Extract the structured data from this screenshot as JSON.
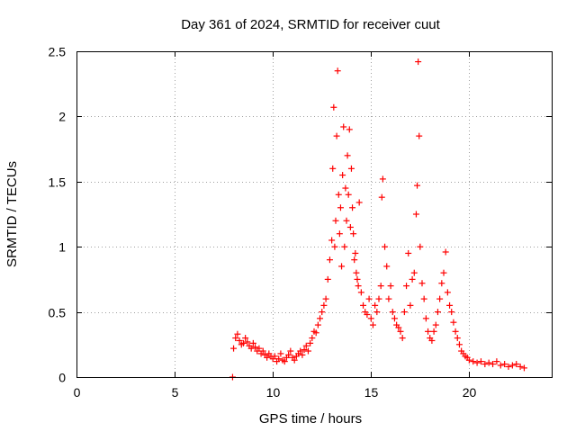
{
  "chart_data": {
    "type": "scatter",
    "title": "Day 361 of 2024, SRMTID for receiver cuut",
    "xlabel": "GPS time / hours",
    "ylabel": "SRMTID / TECUs",
    "xlim": [
      0,
      24.2
    ],
    "ylim": [
      0,
      2.5
    ],
    "xticks": [
      0,
      5,
      10,
      15,
      20
    ],
    "yticks": [
      0,
      0.5,
      1,
      1.5,
      2,
      2.5
    ],
    "xtick_labels": [
      "0",
      "5",
      "10",
      "15",
      "20"
    ],
    "ytick_labels": [
      "0",
      "0.5",
      "1",
      "1.5",
      "2",
      "2.5"
    ],
    "grid": true,
    "marker": "+",
    "color": "#ff0000",
    "series": [
      {
        "name": "SRMTID",
        "x": [
          7.95,
          8.0,
          8.1,
          8.2,
          8.3,
          8.4,
          8.5,
          8.6,
          8.7,
          8.8,
          8.9,
          9.0,
          9.1,
          9.2,
          9.3,
          9.4,
          9.5,
          9.6,
          9.7,
          9.8,
          9.9,
          10.0,
          10.1,
          10.2,
          10.3,
          10.4,
          10.5,
          10.6,
          10.7,
          10.8,
          10.9,
          11.0,
          11.1,
          11.2,
          11.3,
          11.4,
          11.5,
          11.6,
          11.7,
          11.8,
          11.9,
          12.0,
          12.1,
          12.2,
          12.3,
          12.4,
          12.5,
          12.6,
          12.7,
          12.8,
          12.9,
          13.0,
          13.05,
          13.1,
          13.15,
          13.2,
          13.25,
          13.3,
          13.35,
          13.4,
          13.45,
          13.5,
          13.55,
          13.6,
          13.65,
          13.7,
          13.75,
          13.8,
          13.85,
          13.9,
          13.95,
          14.0,
          14.05,
          14.1,
          14.15,
          14.2,
          14.25,
          14.3,
          14.35,
          14.4,
          14.5,
          14.6,
          14.7,
          14.8,
          14.9,
          15.0,
          15.1,
          15.2,
          15.3,
          15.4,
          15.5,
          15.55,
          15.6,
          15.7,
          15.8,
          15.9,
          16.0,
          16.1,
          16.2,
          16.3,
          16.4,
          16.5,
          16.6,
          16.7,
          16.8,
          16.9,
          17.0,
          17.1,
          17.2,
          17.3,
          17.35,
          17.4,
          17.45,
          17.5,
          17.6,
          17.7,
          17.8,
          17.9,
          18.0,
          18.1,
          18.2,
          18.3,
          18.4,
          18.5,
          18.6,
          18.7,
          18.8,
          18.9,
          19.0,
          19.1,
          19.2,
          19.3,
          19.4,
          19.5,
          19.6,
          19.7,
          19.8,
          19.9,
          20.0,
          20.2,
          20.4,
          20.6,
          20.8,
          21.0,
          21.2,
          21.4,
          21.6,
          21.8,
          22.0,
          22.2,
          22.4,
          22.6,
          22.8
        ],
        "y": [
          0.0,
          0.22,
          0.3,
          0.33,
          0.28,
          0.25,
          0.26,
          0.3,
          0.27,
          0.24,
          0.22,
          0.26,
          0.23,
          0.2,
          0.22,
          0.18,
          0.2,
          0.17,
          0.15,
          0.18,
          0.16,
          0.14,
          0.16,
          0.12,
          0.14,
          0.18,
          0.13,
          0.12,
          0.15,
          0.17,
          0.2,
          0.15,
          0.13,
          0.16,
          0.18,
          0.2,
          0.17,
          0.21,
          0.24,
          0.2,
          0.26,
          0.3,
          0.35,
          0.34,
          0.4,
          0.45,
          0.5,
          0.55,
          0.6,
          0.75,
          0.9,
          1.05,
          1.6,
          2.07,
          1.0,
          1.2,
          1.85,
          2.35,
          1.4,
          1.1,
          1.3,
          0.85,
          1.55,
          1.92,
          1.0,
          1.45,
          1.2,
          1.7,
          1.4,
          1.9,
          1.15,
          1.6,
          1.3,
          1.1,
          0.9,
          0.95,
          0.8,
          0.75,
          0.7,
          1.34,
          0.65,
          0.55,
          0.5,
          0.48,
          0.6,
          0.45,
          0.4,
          0.55,
          0.5,
          0.6,
          0.7,
          1.38,
          1.52,
          1.0,
          0.85,
          0.6,
          0.7,
          0.5,
          0.45,
          0.4,
          0.38,
          0.35,
          0.3,
          0.5,
          0.7,
          0.95,
          0.55,
          0.75,
          0.8,
          1.25,
          1.47,
          2.42,
          1.85,
          1.0,
          0.72,
          0.6,
          0.45,
          0.35,
          0.3,
          0.28,
          0.35,
          0.4,
          0.5,
          0.6,
          0.72,
          0.8,
          0.96,
          0.65,
          0.55,
          0.5,
          0.42,
          0.35,
          0.3,
          0.25,
          0.2,
          0.18,
          0.16,
          0.15,
          0.13,
          0.12,
          0.11,
          0.12,
          0.1,
          0.11,
          0.1,
          0.12,
          0.09,
          0.1,
          0.08,
          0.09,
          0.1,
          0.08,
          0.07
        ]
      }
    ]
  }
}
